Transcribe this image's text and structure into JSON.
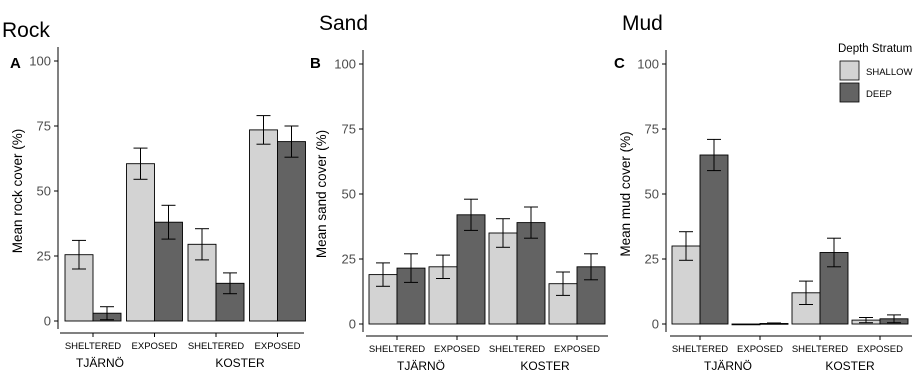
{
  "legend": {
    "title": "Depth Stratum",
    "items": [
      {
        "label": "SHALLOW",
        "color": "#d3d3d3"
      },
      {
        "label": "DEEP",
        "color": "#636363"
      }
    ],
    "placement": "top-right"
  },
  "chart_data": [
    {
      "type": "bar",
      "panel_letter": "A",
      "title": "Rock",
      "ylabel": "Mean rock cover (%)",
      "ylim": [
        0,
        100
      ],
      "yticks": [
        0,
        25,
        50,
        75,
        100
      ],
      "grid": false,
      "group_labels": [
        "TJÄRNÖ",
        "KOSTER"
      ],
      "categories": [
        "SHELTERED",
        "EXPOSED",
        "SHELTERED",
        "EXPOSED"
      ],
      "series": [
        {
          "name": "SHALLOW",
          "color": "#d3d3d3",
          "values": [
            25.5,
            60.5,
            29.5,
            73.5
          ],
          "err": [
            5.5,
            6.0,
            6.0,
            5.5
          ]
        },
        {
          "name": "DEEP",
          "color": "#636363",
          "values": [
            3.0,
            38.0,
            14.5,
            69.0
          ],
          "err": [
            2.5,
            6.5,
            4.0,
            6.0
          ]
        }
      ]
    },
    {
      "type": "bar",
      "panel_letter": "B",
      "title": "Sand",
      "ylabel": "Mean sand cover (%)",
      "ylim": [
        0,
        100
      ],
      "yticks": [
        0,
        25,
        50,
        75,
        100
      ],
      "grid": false,
      "group_labels": [
        "TJÄRNÖ",
        "KOSTER"
      ],
      "categories": [
        "SHELTERED",
        "EXPOSED",
        "SHELTERED",
        "EXPOSED"
      ],
      "series": [
        {
          "name": "SHALLOW",
          "color": "#d3d3d3",
          "values": [
            19.0,
            22.0,
            35.0,
            15.5
          ],
          "err": [
            4.5,
            4.5,
            5.5,
            4.5
          ]
        },
        {
          "name": "DEEP",
          "color": "#636363",
          "values": [
            21.5,
            42.0,
            39.0,
            22.0
          ],
          "err": [
            5.5,
            6.0,
            6.0,
            5.0
          ]
        }
      ]
    },
    {
      "type": "bar",
      "panel_letter": "C",
      "title": "Mud",
      "ylabel": "Mean mud cover (%)",
      "ylim": [
        0,
        100
      ],
      "yticks": [
        0,
        25,
        50,
        75,
        100
      ],
      "grid": false,
      "group_labels": [
        "TJÄRNÖ",
        "KOSTER"
      ],
      "categories": [
        "SHELTERED",
        "EXPOSED",
        "SHELTERED",
        "EXPOSED"
      ],
      "series": [
        {
          "name": "SHALLOW",
          "color": "#d3d3d3",
          "values": [
            30.0,
            0.0,
            12.0,
            1.5
          ],
          "err": [
            5.5,
            0.0,
            4.5,
            1.0
          ]
        },
        {
          "name": "DEEP",
          "color": "#636363",
          "values": [
            65.0,
            0.2,
            27.5,
            2.0
          ],
          "err": [
            6.0,
            0.2,
            5.5,
            1.5
          ]
        }
      ]
    }
  ]
}
